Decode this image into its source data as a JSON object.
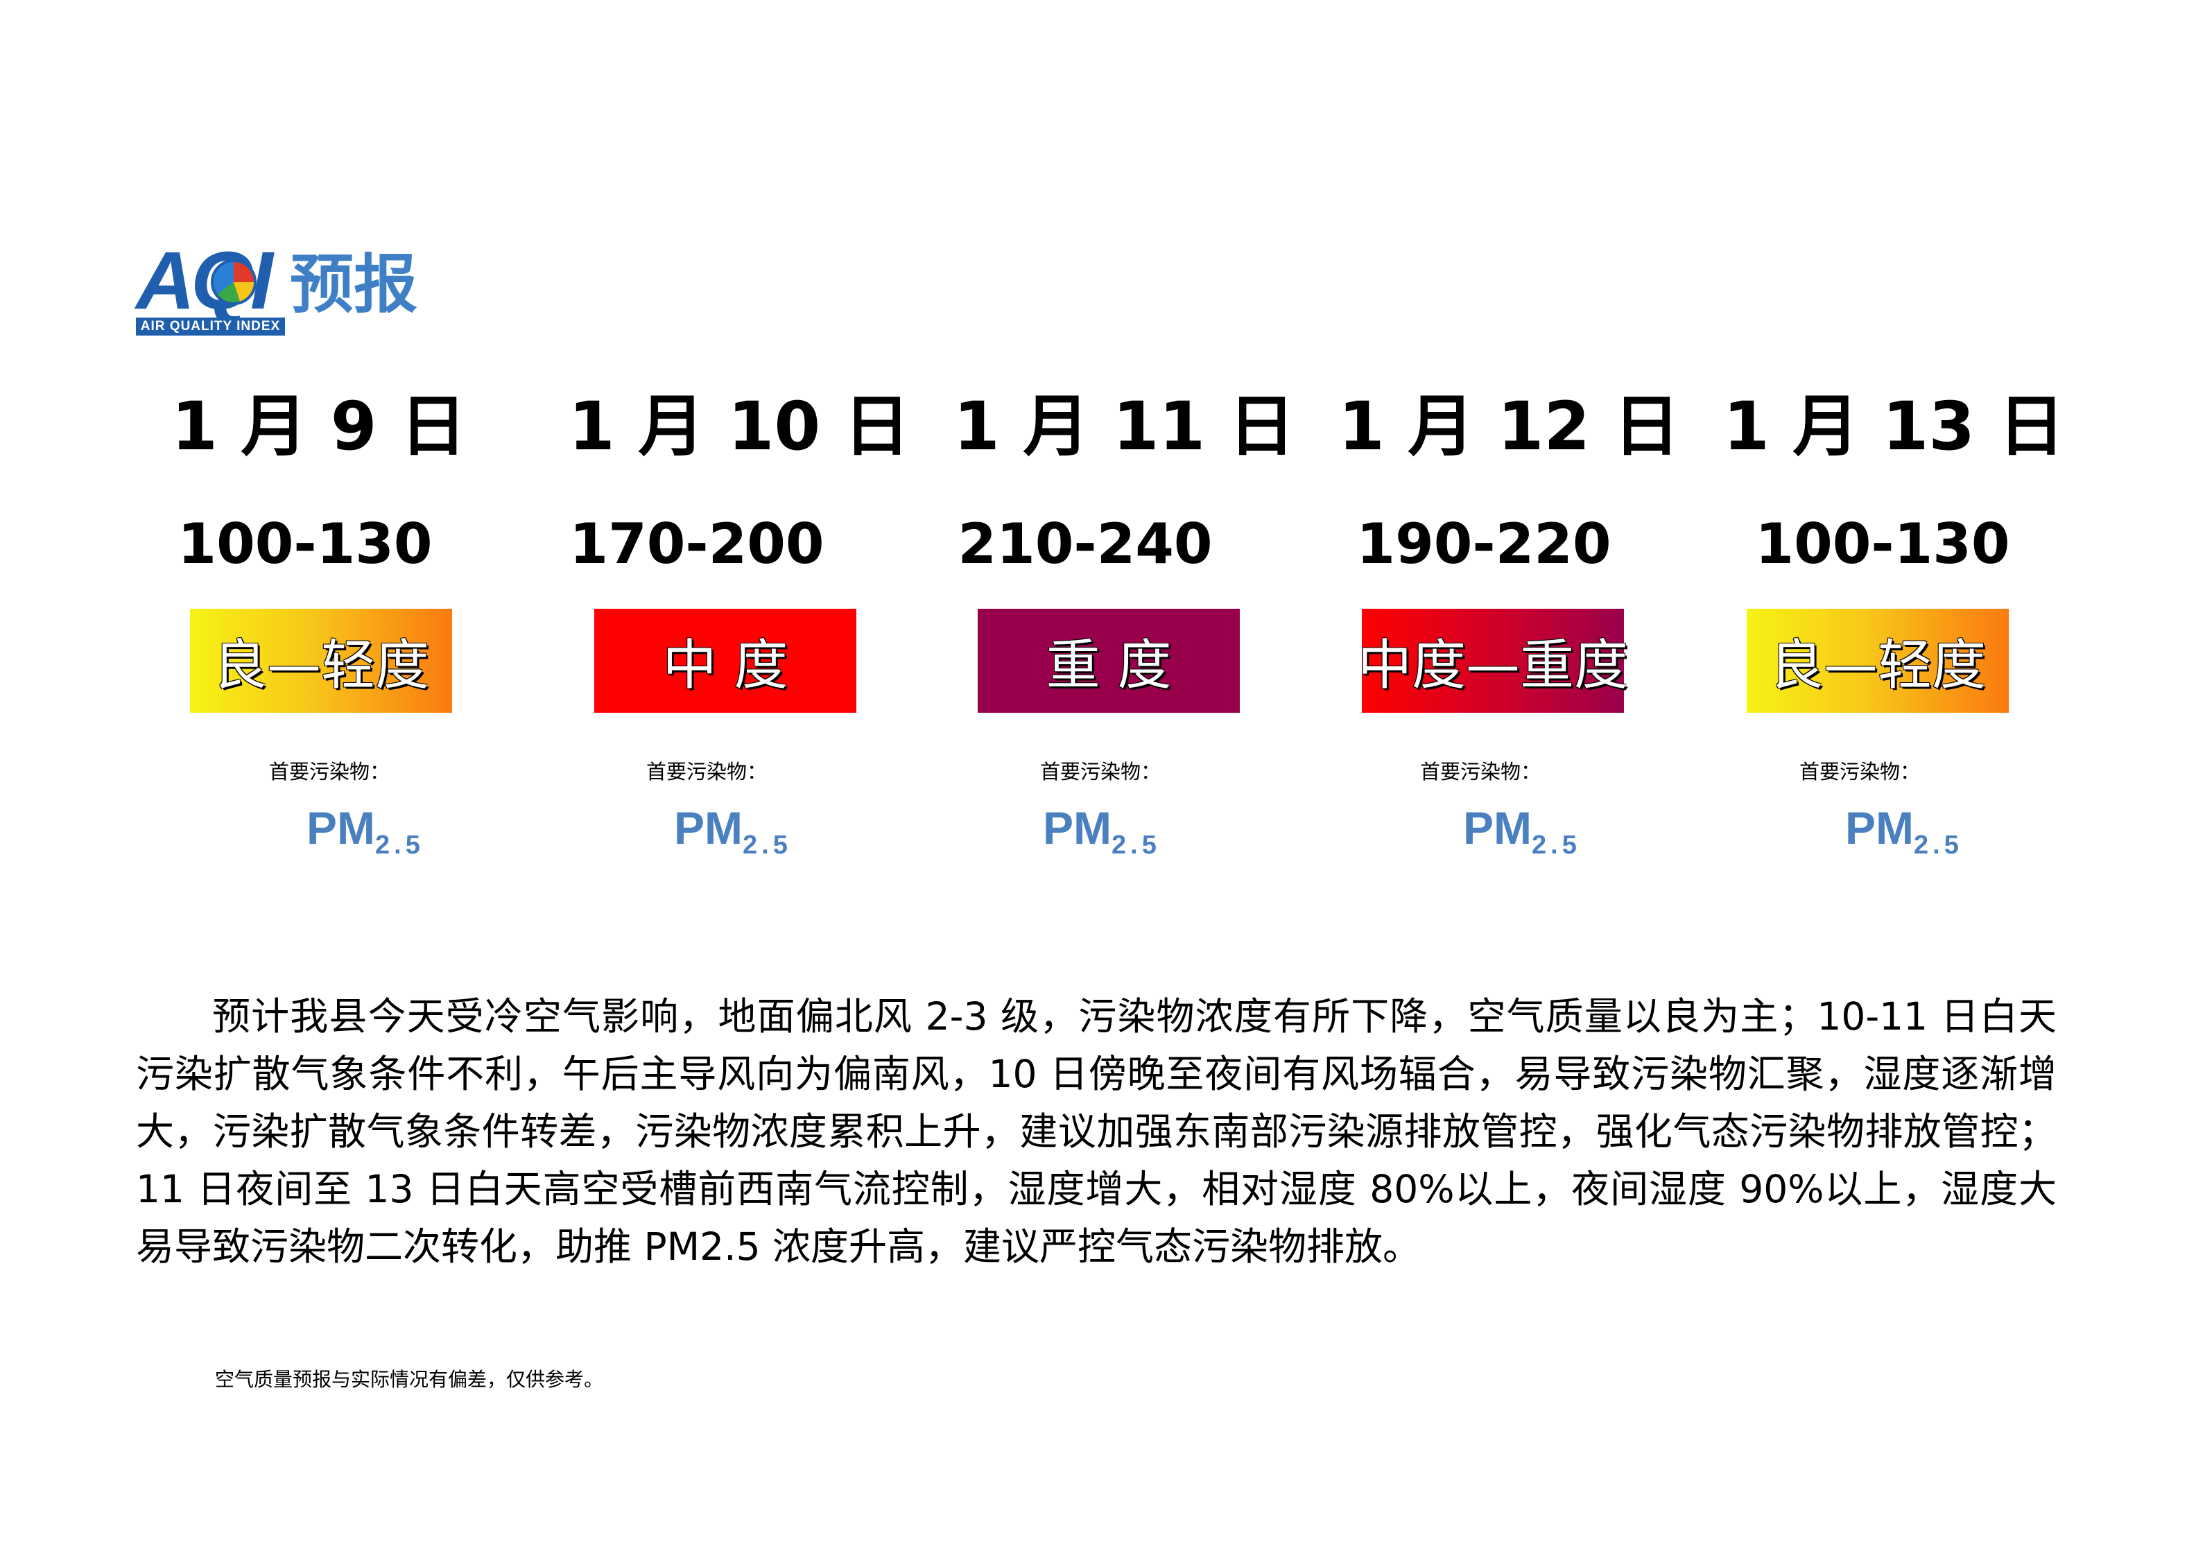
{
  "logo": {
    "letters": "AQI",
    "subtitle": "AIR QUALITY INDEX",
    "title": "预报"
  },
  "days": [
    {
      "date": "1 月 9 日",
      "range": "100-130",
      "level": "良—轻度",
      "pollutant_label": "首要污染物：",
      "pollutant": "PM",
      "pollutant_sub": "2.5",
      "level_color": "#f7f215-#fa7a10"
    },
    {
      "date": "1 月 10 日",
      "range": "170-200",
      "level": "中 度",
      "pollutant_label": "首要污染物：",
      "pollutant": "PM",
      "pollutant_sub": "2.5",
      "level_color": "#ff0000"
    },
    {
      "date": "1 月 11 日",
      "range": "210-240",
      "level": "重 度",
      "pollutant_label": "首要污染物：",
      "pollutant": "PM",
      "pollutant_sub": "2.5",
      "level_color": "#99004c"
    },
    {
      "date": "1 月 12 日",
      "range": "190-220",
      "level": "中度—重度",
      "pollutant_label": "首要污染物：",
      "pollutant": "PM",
      "pollutant_sub": "2.5",
      "level_color": "#ff0000-#99004c"
    },
    {
      "date": "1 月 13 日",
      "range": "100-130",
      "level": "良—轻度",
      "pollutant_label": "首要污染物：",
      "pollutant": "PM",
      "pollutant_sub": "2.5",
      "level_color": "#f7f215-#fa7a10"
    }
  ],
  "description": "预计我县今天受冷空气影响，地面偏北风 2-3 级，污染物浓度有所下降，空气质量以良为主；10-11 日白天污染扩散气象条件不利，午后主导风向为偏南风，10 日傍晚至夜间有风场辐合，易导致污染物汇聚，湿度逐渐增大，污染扩散气象条件转差，污染物浓度累积上升，建议加强东南部污染源排放管控，强化气态污染物排放管控；11 日夜间至 13 日白天高空受槽前西南气流控制，湿度增大，相对湿度 80%以上，夜间湿度 90%以上，湿度大易导致污染物二次转化，助推 PM2.5 浓度升高，建议严控气态污染物排放。",
  "footer_note": "空气质量预报与实际情况有偏差，仅供参考。"
}
